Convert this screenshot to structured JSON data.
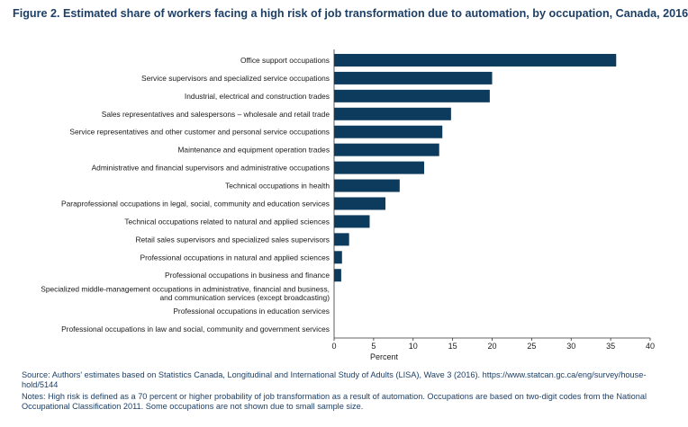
{
  "figure": {
    "title": "Figure 2. Estimated share of workers facing a high risk of job transformation due to automation, by occupation, Canada, 2016"
  },
  "chart_data": {
    "type": "bar",
    "orientation": "horizontal",
    "categories": [
      "Office support occupations",
      "Service supervisors and specialized service occupations",
      "Industrial, electrical and construction trades",
      "Sales representatives and salespersons – wholesale and retail trade",
      "Service representatives and other customer and personal service occupations",
      "Maintenance and equipment operation trades",
      "Administrative and financial supervisors and administrative occupations",
      "Technical occupations in health",
      "Paraprofessional occupations in legal, social, community and education services",
      "Technical occupations related to natural and applied sciences",
      "Retail sales supervisors and specialized sales supervisors",
      "Professional occupations in natural and applied sciences",
      "Professional occupations in business and finance",
      [
        "Specialized middle-management occupations in administrative, financial and  business,",
        "and communication services (except broadcasting)"
      ],
      "Professional occupations in education services",
      "Professional occupations in law and social, community and government services"
    ],
    "values": [
      35.7,
      20.0,
      19.7,
      14.8,
      13.7,
      13.3,
      11.4,
      8.3,
      6.5,
      4.5,
      1.9,
      1.0,
      0.9,
      0,
      0,
      0
    ],
    "xlabel": "Percent",
    "xlim": [
      0,
      40
    ],
    "xticks": [
      "0",
      "5",
      "10",
      "15",
      "20",
      "25",
      "30",
      "35",
      "40"
    ],
    "bar_color": "#0d3b5e",
    "grid": false
  },
  "footer": {
    "source": "Source: Authors' estimates based on Statistics Canada, Longitudinal and International Study of Adults (LISA), Wave 3 (2016). https://www.statcan.gc.ca/eng/survey/house-hold/5144",
    "notes": "Notes: High risk is defined as a 70 percent or higher probability of job transformation as a result of automation. Occupations are based on two-digit codes from the National Occupational Classification 2011. Some occupations are not shown due to small sample size."
  }
}
